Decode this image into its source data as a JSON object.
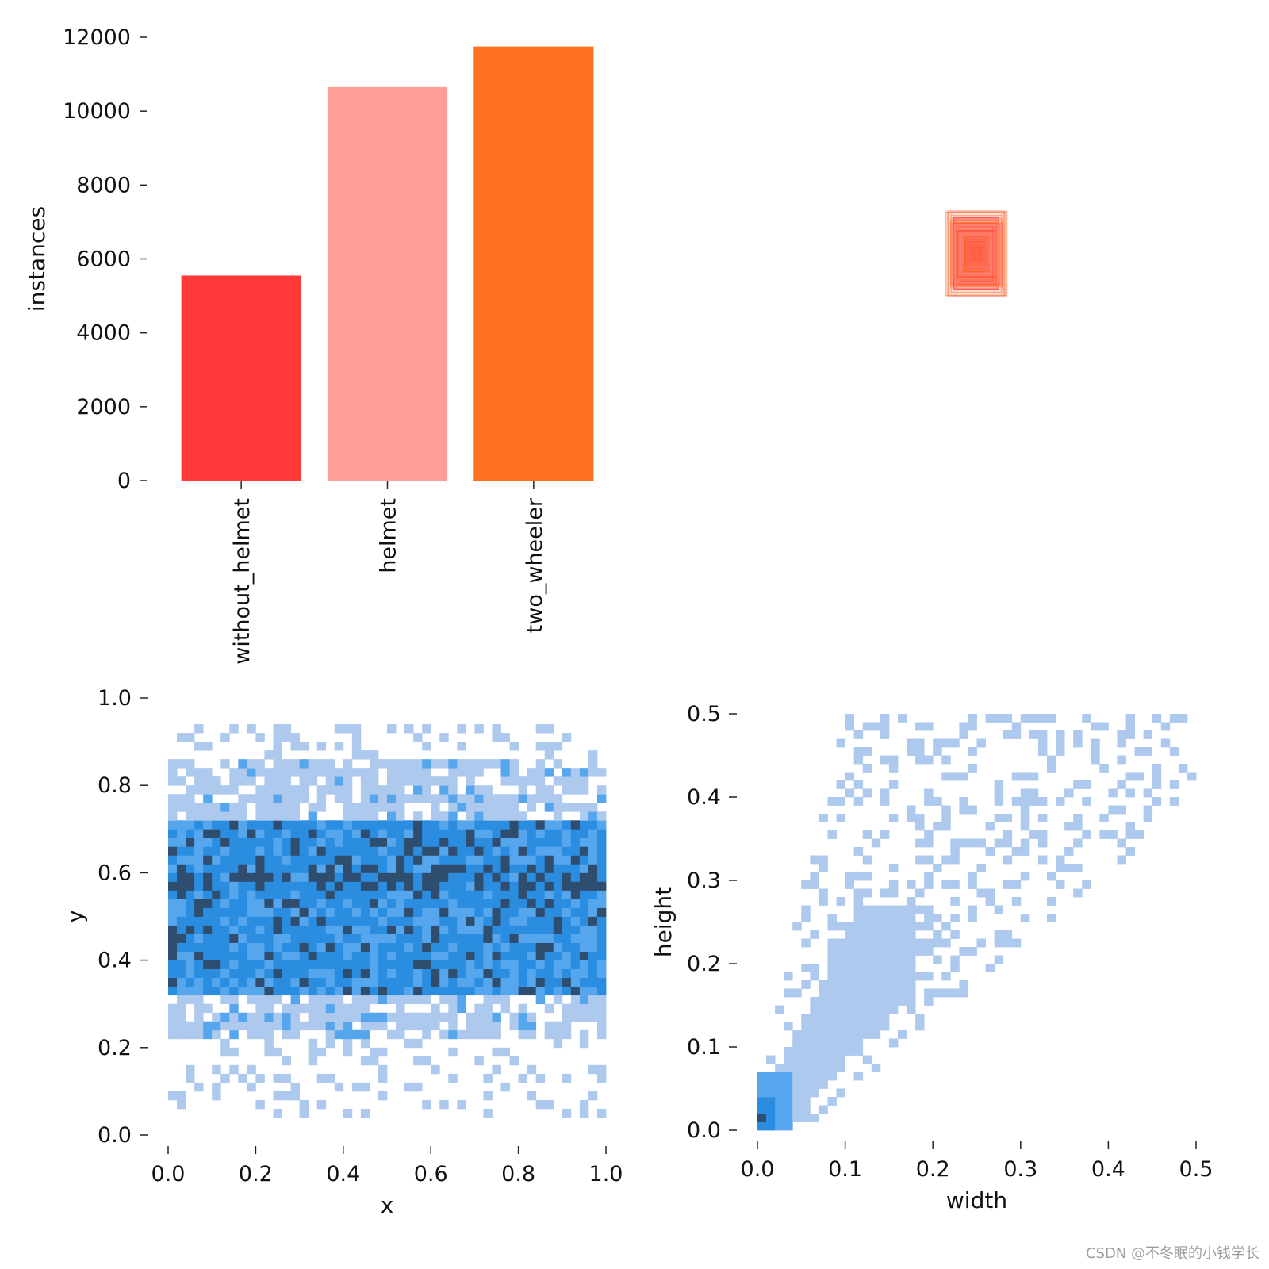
{
  "chart_data": [
    {
      "type": "bar",
      "categories": [
        "without_helmet",
        "helmet",
        "two_wheeler"
      ],
      "values": [
        5550,
        10650,
        11750
      ],
      "colors": [
        "#ff3838",
        "#ff9d97",
        "#ff701f"
      ],
      "title": "",
      "xlabel": "",
      "ylabel": "instances",
      "ylim": [
        0,
        12000
      ],
      "yticks": [
        0,
        2000,
        4000,
        6000,
        8000,
        10000,
        12000
      ],
      "grid": false
    },
    {
      "type": "other",
      "description": "",
      "colors": [
        "#ff701f",
        "#ff3838",
        "#ff9d97"
      ]
    },
    {
      "type": "heatmap",
      "xlabel": "x",
      "ylabel": "y",
      "xlim": [
        0,
        1
      ],
      "ylim": [
        0,
        1
      ],
      "xticks": [
        "0.0",
        "0.2",
        "0.4",
        "0.6",
        "0.8",
        "1.0"
      ],
      "yticks": [
        "0.0",
        "0.2",
        "0.4",
        "0.6",
        "0.8",
        "1.0"
      ],
      "density_bands": [
        {
          "y_range": [
            0.55,
            0.62
          ],
          "level": "highest"
        },
        {
          "y_range": [
            0.32,
            0.72
          ],
          "level": "high"
        },
        {
          "y_range": [
            0.22,
            0.86
          ],
          "level": "medium"
        },
        {
          "y_range": [
            0.03,
            0.95
          ],
          "level": "low"
        }
      ],
      "colors": {
        "low": "#aec9ee",
        "medium": "#56a6ee",
        "high": "#2b8de0",
        "highest": "#2f4d6e"
      }
    },
    {
      "type": "heatmap",
      "xlabel": "width",
      "ylabel": "height",
      "xlim": [
        0,
        0.5
      ],
      "ylim": [
        0,
        0.5
      ],
      "xticks": [
        "0.0",
        "0.1",
        "0.2",
        "0.3",
        "0.4",
        "0.5"
      ],
      "yticks": [
        "0.0",
        "0.1",
        "0.2",
        "0.3",
        "0.4",
        "0.5"
      ],
      "peak": {
        "width": 0.005,
        "height": 0.01
      },
      "colors": {
        "low": "#aec9ee",
        "medium": "#56a6ee",
        "high": "#2b8de0",
        "highest": "#2f4d6e"
      }
    }
  ],
  "watermark": "CSDN @不冬眠的小钱学长"
}
